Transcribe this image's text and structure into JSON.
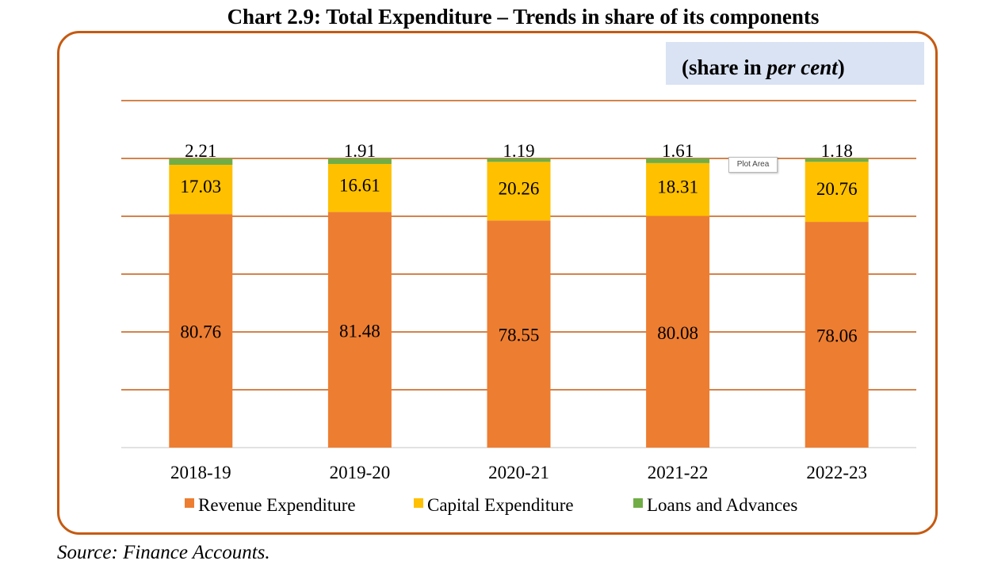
{
  "page": {
    "title": "Chart 2.9: Total Expenditure – Trends in share of its components",
    "unit_prefix": "(share in ",
    "unit_italic": "per cent",
    "unit_suffix": ")",
    "source": "Source: Finance Accounts.",
    "tooltip": "Plot Area"
  },
  "chart_data": {
    "type": "bar",
    "stacked": true,
    "title": "Chart 2.9: Total Expenditure – Trends in share of its components",
    "xlabel": "",
    "ylabel": "",
    "ylim": [
      0,
      120
    ],
    "grid": true,
    "legend_position": "bottom",
    "categories": [
      "2018-19",
      "2019-20",
      "2020-21",
      "2021-22",
      "2022-23"
    ],
    "series": [
      {
        "name": "Revenue Expenditure",
        "color": "#ed7d31",
        "values": [
          80.76,
          81.48,
          78.55,
          80.08,
          78.06
        ]
      },
      {
        "name": "Capital Expenditure",
        "color": "#ffc000",
        "values": [
          17.03,
          16.61,
          20.26,
          18.31,
          20.76
        ]
      },
      {
        "name": "Loans and Advances",
        "color": "#70ad47",
        "values": [
          2.21,
          1.91,
          1.19,
          1.61,
          1.18
        ]
      }
    ],
    "gridline_color": "#c55a11",
    "axis_color": "#d9d9d9"
  }
}
